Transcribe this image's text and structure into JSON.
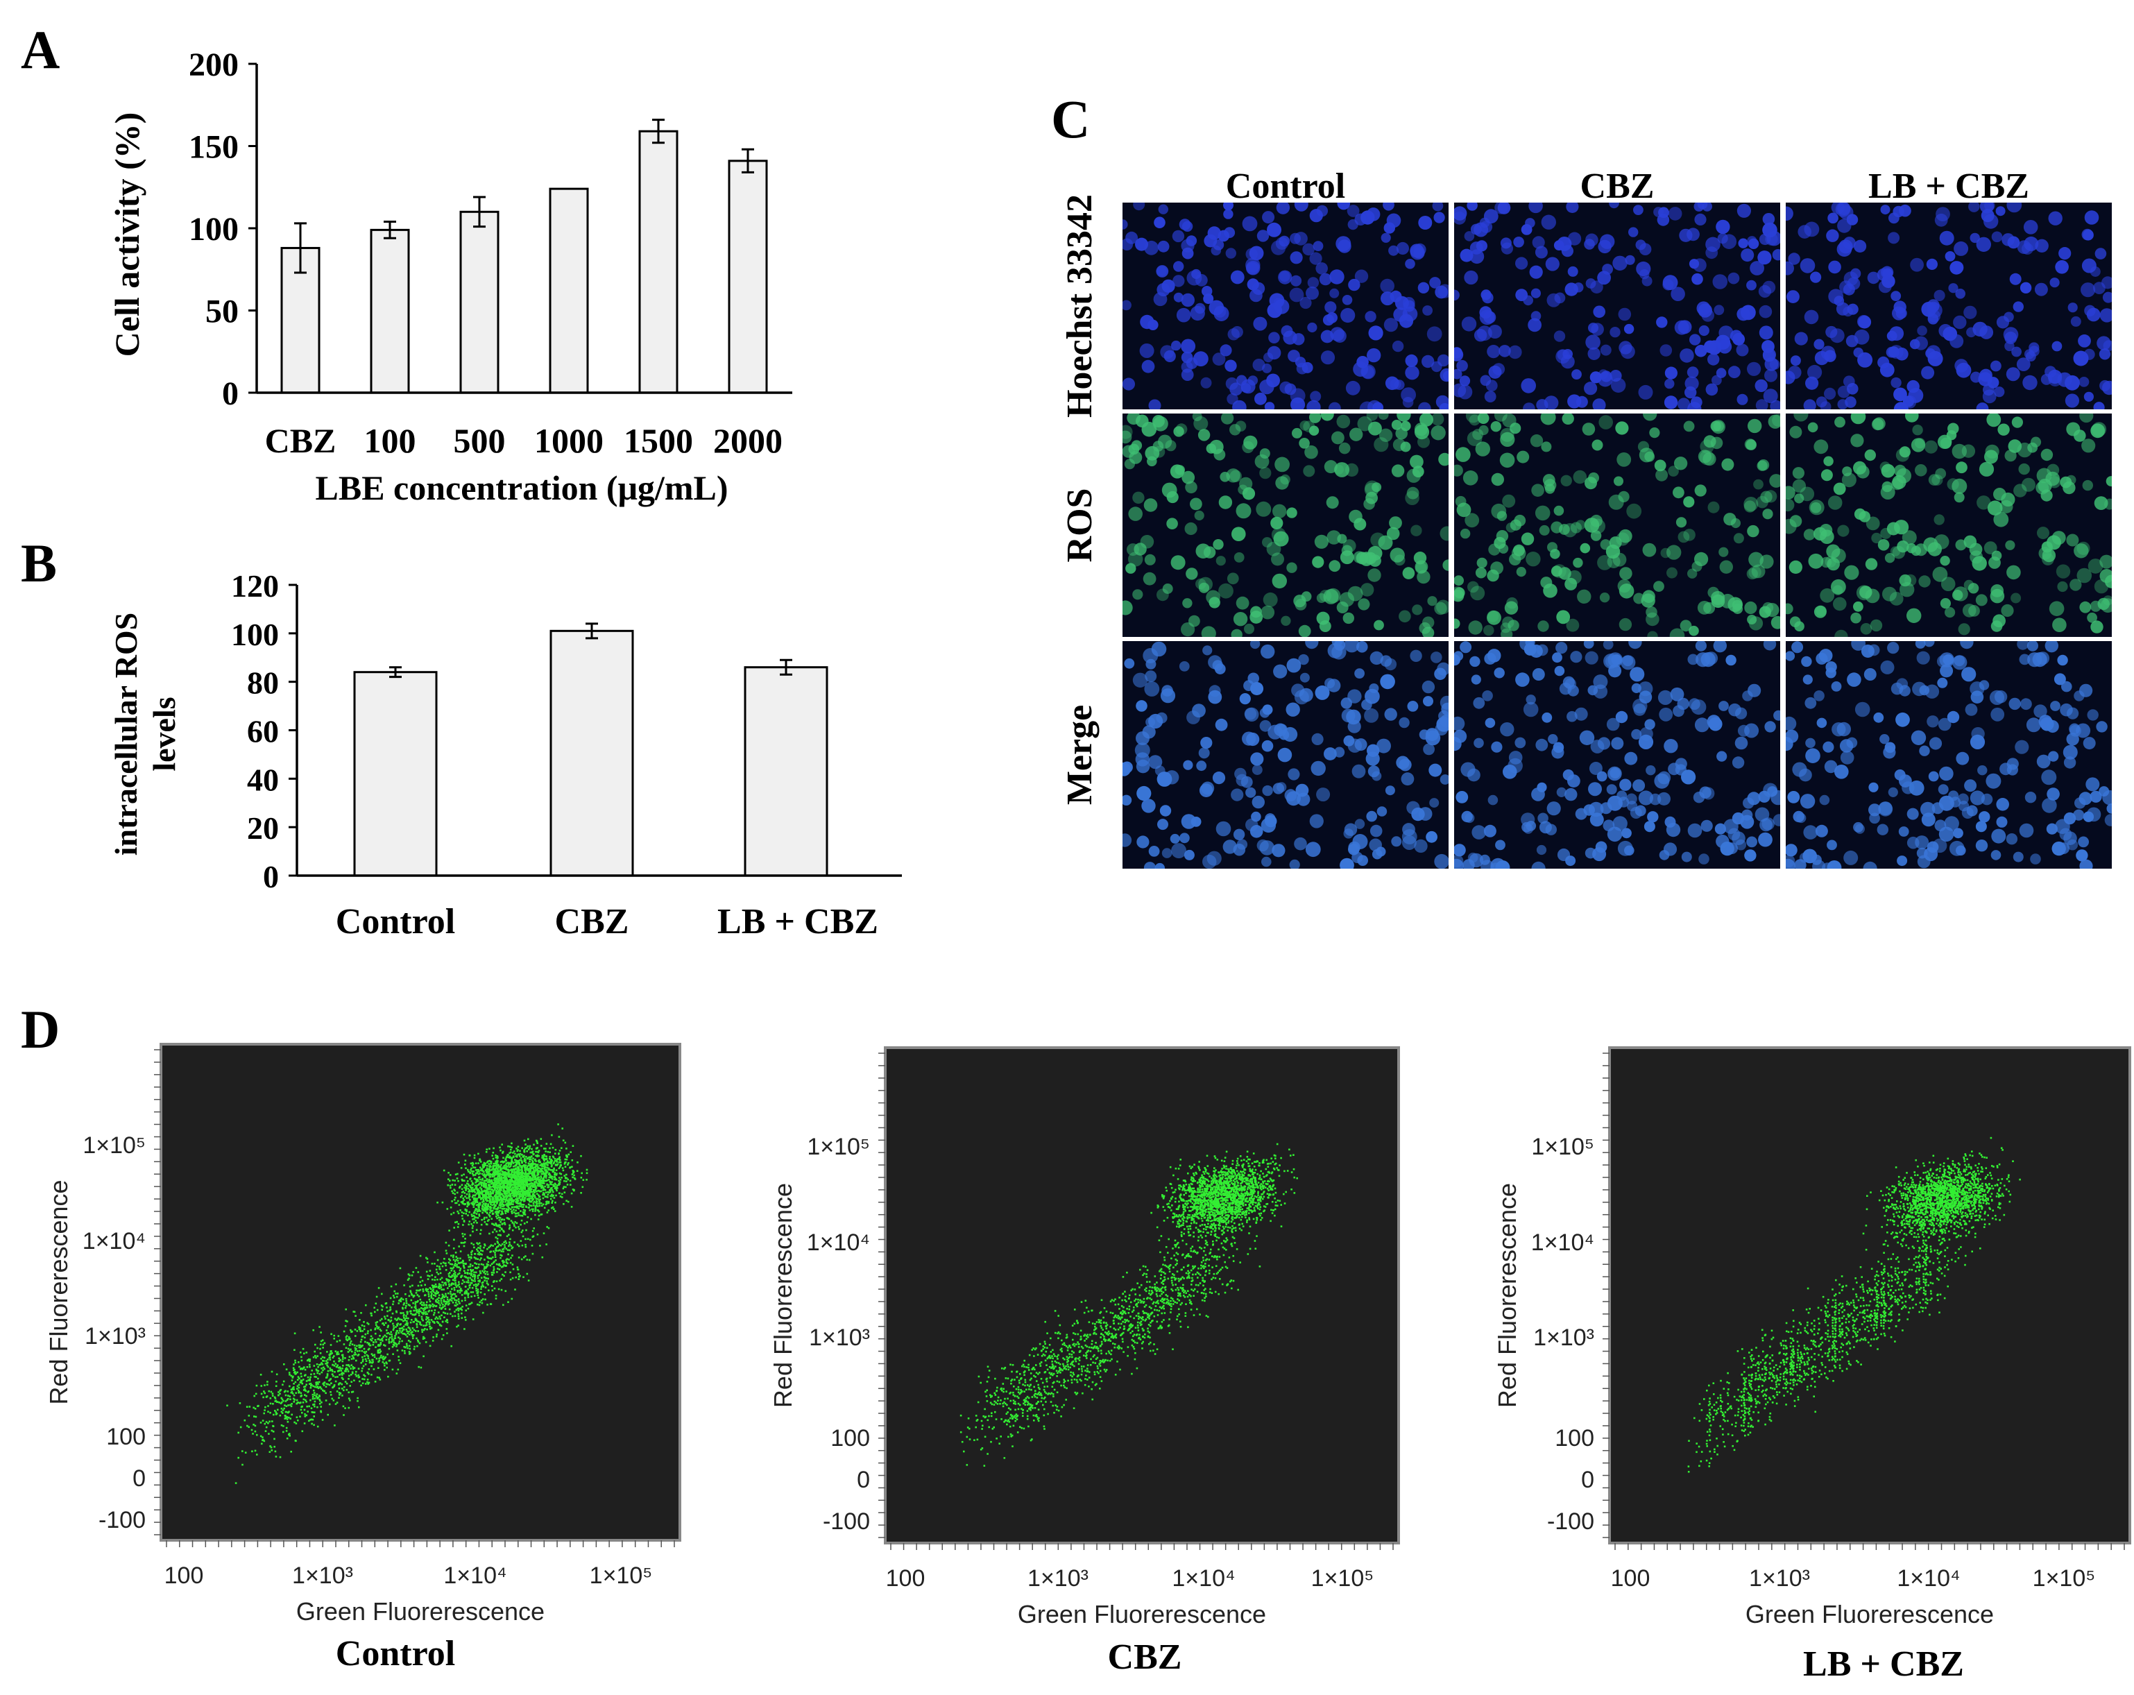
{
  "panels": {
    "A": {
      "letter": "A"
    },
    "B": {
      "letter": "B"
    },
    "C": {
      "letter": "C"
    },
    "D": {
      "letter": "D"
    }
  },
  "chart_data": [
    {
      "id": "A",
      "type": "bar",
      "categories": [
        "CBZ",
        "100",
        "500",
        "1000",
        "1500",
        "2000"
      ],
      "values": [
        88,
        99,
        110,
        124,
        159,
        141
      ],
      "errors": [
        15,
        5,
        9,
        0,
        7,
        7
      ],
      "xlabel": "LBE concentration (μg/mL)",
      "ylabel": "Cell activity (%)",
      "ylim": [
        0,
        200
      ],
      "yticks": [
        0,
        50,
        100,
        150,
        200
      ],
      "grid": false,
      "bar_color": "#f0f0f0"
    },
    {
      "id": "B",
      "type": "bar",
      "categories": [
        "Control",
        "CBZ",
        "LB + CBZ"
      ],
      "values": [
        84,
        101,
        86
      ],
      "errors": [
        2,
        3,
        3
      ],
      "xlabel": "",
      "ylabel": [
        "intracellular ROS",
        "levels"
      ],
      "ylim": [
        0,
        120
      ],
      "yticks": [
        0,
        20,
        40,
        60,
        80,
        100,
        120
      ],
      "grid": false,
      "bar_color": "#f0f0f0"
    },
    {
      "id": "D",
      "type": "scatter",
      "xlabel": "Green Fluorerescence",
      "ylabel": "Red Fluorerescence",
      "xscale": "log",
      "yscale": "biexponential",
      "xtick_labels": [
        "100",
        "1×10³",
        "1×10⁴",
        "1×10⁵"
      ],
      "ytick_labels": [
        "-100",
        "0",
        "100",
        "1×10³",
        "1×10⁴",
        "1×10⁵"
      ],
      "background": "#1f1f1f",
      "point_color": "#33ee33",
      "plots": [
        {
          "name": "Control",
          "cluster_center": [
            18000,
            40000
          ],
          "points": 4200
        },
        {
          "name": "CBZ",
          "cluster_center": [
            15000,
            30000
          ],
          "points": 3000
        },
        {
          "name": "LB + CBZ",
          "cluster_center": [
            14000,
            28000
          ],
          "points": 2800
        }
      ]
    }
  ],
  "micrographs": {
    "columns": [
      "Control",
      "CBZ",
      "LB + CBZ"
    ],
    "rows": [
      {
        "label": "Hoechst 33342",
        "stain": "blue"
      },
      {
        "label": "ROS",
        "stain": "green"
      },
      {
        "label": "Merge",
        "stain": "merge"
      }
    ],
    "colors": {
      "blue": "#2a3fd8",
      "green": "#3fbf73",
      "merge": "#3a76d8",
      "background": "#050a1e"
    }
  }
}
